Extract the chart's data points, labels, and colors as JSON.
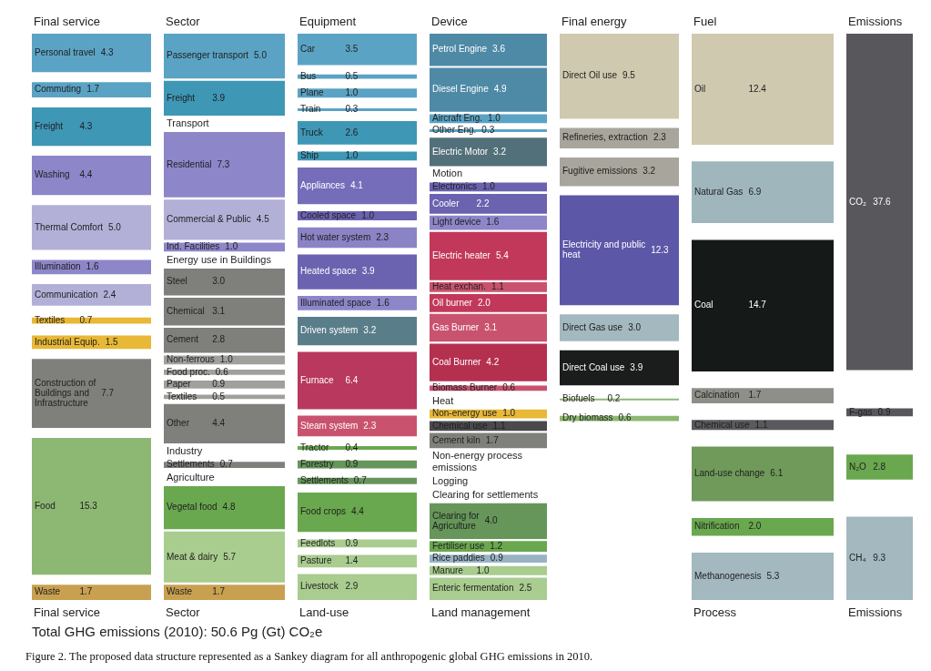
{
  "chart_data": [
    {
      "type": "other",
      "title": "Final service",
      "xlabel": "Final service",
      "categories": [
        "Personal travel",
        "Commuting",
        "Freight",
        "Washing",
        "Thermal Comfort",
        "Illumination",
        "Communication",
        "Textiles",
        "Industrial Equip.",
        "Construction of Buildings and Infrastructure",
        "Food",
        "Waste"
      ],
      "values": [
        4.3,
        1.7,
        4.3,
        4.4,
        5.0,
        1.6,
        2.4,
        0.7,
        1.5,
        7.7,
        15.3,
        1.7
      ],
      "value_labels": [
        "4.3",
        "1.7",
        "4.3",
        "4.4",
        "5.0",
        "1.6",
        "2.4",
        "0.7",
        "1.5",
        "7.7",
        "15.3",
        "1.7"
      ],
      "colors": [
        "#5ba3c4",
        "#5ba3c4",
        "#3f97b6",
        "#8d86c9",
        "#b3b0d8",
        "#8d86c9",
        "#b3b0d8",
        "#e8b836",
        "#e8b836",
        "#7f7f7b",
        "#8db873",
        "#c8a050"
      ]
    },
    {
      "type": "other",
      "title": "Sector",
      "xlabel": "Sector",
      "categories": [
        "Passenger transport",
        "Freight",
        "Transport",
        "Residential",
        "Commercial & Public",
        "Ind. Facilities",
        "Energy use in Buildings",
        "Steel",
        "Chemical",
        "Cement",
        "Non-ferrous",
        "Food proc.",
        "Paper",
        "Textiles",
        "Other",
        "Industry",
        "Settlements",
        "Agriculture",
        "Vegetal food",
        "Meat & dairy",
        "Waste"
      ],
      "values": [
        5.0,
        3.9,
        null,
        7.3,
        4.5,
        1.0,
        null,
        3.0,
        3.1,
        2.8,
        1.0,
        0.6,
        0.9,
        0.5,
        4.4,
        null,
        0.7,
        null,
        4.8,
        5.7,
        1.7
      ],
      "value_labels": [
        "5.0",
        "3.9",
        null,
        "7.3",
        "4.5",
        "1.0",
        null,
        "3.0",
        "3.1",
        "2.8",
        "1.0",
        "0.6",
        "0.9",
        "0.5",
        "4.4",
        null,
        "0.7",
        null,
        "4.8",
        "5.7",
        "1.7"
      ],
      "colors": [
        "#5ba3c4",
        "#3f97b6",
        null,
        "#8d86c9",
        "#b3b0d8",
        "#8d86c9",
        null,
        "#7f7f7b",
        "#7f7f7b",
        "#7f7f7b",
        "#a0a09c",
        "#a0a09c",
        "#a0a09c",
        "#a0a09c",
        "#7f7f7b",
        null,
        "#7f7f7b",
        null,
        "#6aa84f",
        "#a9cc8f",
        "#c8a050"
      ]
    },
    {
      "type": "other",
      "title": "Equipment",
      "xlabel": "Land-use",
      "categories": [
        "Car",
        "Bus",
        "Plane",
        "Train",
        "Truck",
        "Ship",
        "Appliances",
        "Cooled space",
        "Hot water system",
        "Heated space",
        "Illuminated space",
        "Driven system",
        "Furnace",
        "Steam system",
        "Tractor",
        "Forestry",
        "Settlements",
        "Food crops",
        "Feedlots",
        "Pasture",
        "Livestock"
      ],
      "values": [
        3.5,
        0.5,
        1.0,
        0.3,
        2.6,
        1.0,
        4.1,
        1.0,
        2.3,
        3.9,
        1.6,
        3.2,
        6.4,
        2.3,
        0.4,
        0.9,
        0.7,
        4.4,
        0.9,
        1.4,
        2.9
      ],
      "value_labels": [
        "3.5",
        "0.5",
        "1.0",
        "0.3",
        "2.6",
        "1.0",
        "4.1",
        "1.0",
        "2.3",
        "3.9",
        "1.6",
        "3.2",
        "6.4",
        "2.3",
        "0.4",
        "0.9",
        "0.7",
        "4.4",
        "0.9",
        "1.4",
        "2.9"
      ],
      "colors": [
        "#5ba3c4",
        "#5ba3c4",
        "#5ba3c4",
        "#5ba3c4",
        "#3f97b6",
        "#3f97b6",
        "#756dba",
        "#6b62b0",
        "#8a83c6",
        "#6b62b0",
        "#8d86c9",
        "#5a7d8a",
        "#b8385e",
        "#c9536e",
        "#6aa84f",
        "#66965a",
        "#66965a",
        "#6aa84f",
        "#a9cc8f",
        "#a9cc8f",
        "#a9cc8f"
      ]
    },
    {
      "type": "other",
      "title": "Device",
      "xlabel": "Land management",
      "categories": [
        "Petrol Engine",
        "Diesel Engine",
        "Aircraft Eng.",
        "Other Eng.",
        "Electric Motor",
        "Motion",
        "Electronics",
        "Cooler",
        "Light device",
        "Electric heater",
        "Heat exchan.",
        "Oil burner",
        "Gas Burner",
        "Coal Burner",
        "Biomass Burner",
        "Heat",
        "Non-energy use",
        "Chemical use",
        "Cement kiln",
        "Non-energy process emissions",
        "Logging",
        "Clearing for settlements",
        "Clearing for Agriculture",
        "Fertiliser use",
        "Rice paddies",
        "Manure",
        "Enteric fermentation"
      ],
      "values": [
        3.6,
        4.9,
        1.0,
        0.3,
        3.2,
        null,
        1.0,
        2.2,
        1.6,
        5.4,
        1.1,
        2.0,
        3.1,
        4.2,
        0.6,
        null,
        1.0,
        1.1,
        1.7,
        null,
        null,
        null,
        4.0,
        1.2,
        0.9,
        1.0,
        2.5
      ],
      "value_labels": [
        "3.6",
        "4.9",
        "1.0",
        "0.3",
        "3.2",
        null,
        "1.0",
        "2.2",
        "1.6",
        "5.4",
        "1.1",
        "2.0",
        "3.1",
        "4.2",
        "0.6",
        null,
        "1.0",
        "1.1",
        "1.7",
        null,
        null,
        null,
        "4.0",
        "1.2",
        "0.9",
        "1.0",
        "2.5"
      ],
      "colors": [
        "#4e8aa6",
        "#4e8aa6",
        "#5ba3c4",
        "#5ba3c4",
        "#52707a",
        null,
        "#6b62b0",
        "#6b62b0",
        "#8d86c9",
        "#c2385a",
        "#c9536e",
        "#c2385a",
        "#c9536e",
        "#b5304f",
        "#c9536e",
        null,
        "#e8b836",
        "#4a4a4e",
        "#7f7f7b",
        null,
        null,
        null,
        "#66965a",
        "#6aa84f",
        "#98b4c4",
        "#a9cc8f",
        "#a9cc8f"
      ]
    },
    {
      "type": "other",
      "title": "Final energy",
      "categories": [
        "Direct Oil use",
        "Refineries, extraction",
        "Fugitive emissions",
        "Electricity and public heat",
        "Direct Gas use",
        "Direct Coal use",
        "Biofuels",
        "Dry biomass"
      ],
      "values": [
        9.5,
        2.3,
        3.2,
        12.3,
        3.0,
        3.9,
        0.2,
        0.6
      ],
      "value_labels": [
        "9.5",
        "2.3",
        "3.2",
        "12.3",
        "3.0",
        "3.9",
        "0.2",
        "0.6"
      ],
      "colors": [
        "#cfc9b0",
        "#a8a69c",
        "#a8a69c",
        "#5d57a8",
        "#a3b8bf",
        "#1a1d1c",
        "#8db873",
        "#8db873"
      ]
    },
    {
      "type": "other",
      "title": "Fuel",
      "xlabel": "Process",
      "categories": [
        "Oil",
        "Natural Gas",
        "Coal",
        "Calcination",
        "Chemical use",
        "Land-use change",
        "Nitrification",
        "Methanogenesis"
      ],
      "values": [
        12.4,
        6.9,
        14.7,
        1.7,
        1.1,
        6.1,
        2.0,
        5.3
      ],
      "value_labels": [
        "12.4",
        "6.9",
        "14.7",
        "1.7",
        "1.1",
        "6.1",
        "2.0",
        "5.3"
      ],
      "colors": [
        "#cfc9b0",
        "#9fb6bd",
        "#151917",
        "#8f8f8a",
        "#5a5a5e",
        "#6f9a5a",
        "#6aa84f",
        "#a3b8bf"
      ]
    },
    {
      "type": "other",
      "title": "Emissions",
      "xlabel": "Emissions",
      "categories": [
        "CO₂",
        "F-gas",
        "N₂O",
        "CH₄"
      ],
      "values": [
        37.6,
        0.9,
        2.8,
        9.3
      ],
      "value_labels": [
        "37.6",
        "0.9",
        "2.8",
        "9.3"
      ],
      "colors": [
        "#58575b",
        "#58575b",
        "#6aa84f",
        "#a3b8bf"
      ]
    },
    {
      "type": "other",
      "annotations": [
        "Total GHG emissions (2010): 50.6 Pg (Gt) CO₂e",
        "Figure 2. The proposed data structure represented as a Sankey diagram for all anthropogenic global GHG emissions in 2010."
      ]
    }
  ]
}
